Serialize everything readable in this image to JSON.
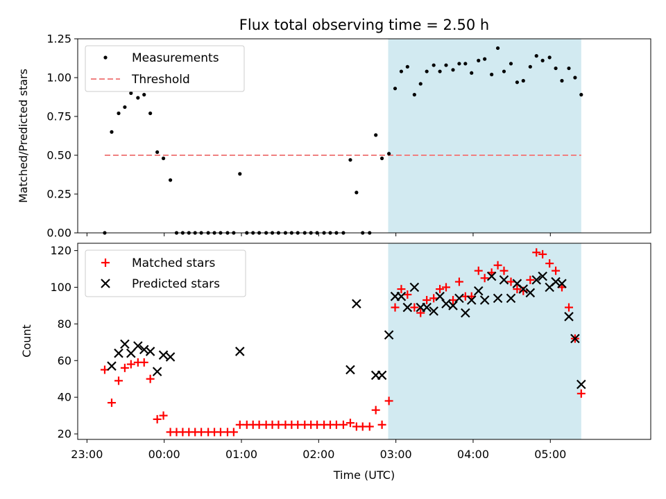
{
  "chart_data": {
    "title": "Flux total observing time = 2.50 h",
    "xlabel": "Time (UTC)",
    "x_unit": "hours",
    "xlim": [
      22.88,
      6.3
    ],
    "x_ticks": [
      {
        "value": 23.0,
        "label": "23:00"
      },
      {
        "value": 24.0,
        "label": "00:00"
      },
      {
        "value": 25.0,
        "label": "01:00"
      },
      {
        "value": 26.0,
        "label": "02:00"
      },
      {
        "value": 27.0,
        "label": "03:00"
      },
      {
        "value": 28.0,
        "label": "04:00"
      },
      {
        "value": 29.0,
        "label": "05:00"
      }
    ],
    "shaded_region": {
      "x_start": 26.9,
      "x_end": 29.4,
      "color": "#add8e6"
    },
    "panels": [
      {
        "type": "scatter",
        "ylabel": "Matched/Predicted stars",
        "ylim": [
          0,
          1.25
        ],
        "yticks": [
          "0.00",
          "0.25",
          "0.50",
          "0.75",
          "1.00",
          "1.25"
        ],
        "legend": "top-left",
        "threshold": {
          "name": "Threshold",
          "y": 0.5,
          "x_start": 23.23,
          "x_end": 29.4,
          "color": "#f08080"
        },
        "series": [
          {
            "name": "Measurements",
            "color": "#000000",
            "points": [
              [
                23.23,
                0.0
              ],
              [
                23.32,
                0.65
              ],
              [
                23.41,
                0.77
              ],
              [
                23.49,
                0.81
              ],
              [
                23.57,
                0.9
              ],
              [
                23.66,
                0.87
              ],
              [
                23.74,
                0.89
              ],
              [
                23.82,
                0.77
              ],
              [
                23.91,
                0.52
              ],
              [
                23.99,
                0.48
              ],
              [
                24.08,
                0.34
              ],
              [
                24.16,
                0.0
              ],
              [
                24.24,
                0.0
              ],
              [
                24.32,
                0.0
              ],
              [
                24.4,
                0.0
              ],
              [
                24.48,
                0.0
              ],
              [
                24.57,
                0.0
              ],
              [
                24.65,
                0.0
              ],
              [
                24.73,
                0.0
              ],
              [
                24.82,
                0.0
              ],
              [
                24.9,
                0.0
              ],
              [
                24.98,
                0.38
              ],
              [
                25.07,
                0.0
              ],
              [
                25.15,
                0.0
              ],
              [
                25.23,
                0.0
              ],
              [
                25.32,
                0.0
              ],
              [
                25.4,
                0.0
              ],
              [
                25.48,
                0.0
              ],
              [
                25.57,
                0.0
              ],
              [
                25.65,
                0.0
              ],
              [
                25.73,
                0.0
              ],
              [
                25.82,
                0.0
              ],
              [
                25.9,
                0.0
              ],
              [
                25.98,
                0.0
              ],
              [
                26.07,
                0.0
              ],
              [
                26.15,
                0.0
              ],
              [
                26.23,
                0.0
              ],
              [
                26.32,
                0.0
              ],
              [
                26.41,
                0.47
              ],
              [
                26.49,
                0.26
              ],
              [
                26.57,
                0.0
              ],
              [
                26.66,
                0.0
              ],
              [
                26.74,
                0.63
              ],
              [
                26.82,
                0.48
              ],
              [
                26.91,
                0.51
              ],
              [
                26.99,
                0.93
              ],
              [
                27.07,
                1.04
              ],
              [
                27.15,
                1.07
              ],
              [
                27.24,
                0.89
              ],
              [
                27.32,
                0.96
              ],
              [
                27.4,
                1.04
              ],
              [
                27.49,
                1.08
              ],
              [
                27.57,
                1.04
              ],
              [
                27.65,
                1.08
              ],
              [
                27.74,
                1.05
              ],
              [
                27.82,
                1.09
              ],
              [
                27.9,
                1.09
              ],
              [
                27.98,
                1.03
              ],
              [
                28.07,
                1.11
              ],
              [
                28.15,
                1.12
              ],
              [
                28.24,
                1.02
              ],
              [
                28.32,
                1.19
              ],
              [
                28.4,
                1.04
              ],
              [
                28.49,
                1.09
              ],
              [
                28.57,
                0.97
              ],
              [
                28.65,
                0.98
              ],
              [
                28.74,
                1.07
              ],
              [
                28.82,
                1.14
              ],
              [
                28.9,
                1.11
              ],
              [
                28.99,
                1.13
              ],
              [
                29.07,
                1.06
              ],
              [
                29.15,
                0.98
              ],
              [
                29.24,
                1.06
              ],
              [
                29.32,
                1.0
              ],
              [
                29.4,
                0.89
              ]
            ]
          }
        ]
      },
      {
        "type": "scatter",
        "ylabel": "Count",
        "ylim": [
          17,
          124
        ],
        "yticks": [
          "20",
          "40",
          "60",
          "80",
          "100",
          "120"
        ],
        "legend": "top-left",
        "series": [
          {
            "name": "Matched stars",
            "color": "#ff0000",
            "marker": "plus",
            "points": [
              [
                23.23,
                55
              ],
              [
                23.32,
                37
              ],
              [
                23.41,
                49
              ],
              [
                23.49,
                56
              ],
              [
                23.57,
                58
              ],
              [
                23.66,
                59
              ],
              [
                23.74,
                59
              ],
              [
                23.82,
                50
              ],
              [
                23.91,
                28
              ],
              [
                23.99,
                30
              ],
              [
                24.08,
                21
              ],
              [
                24.16,
                21
              ],
              [
                24.24,
                21
              ],
              [
                24.32,
                21
              ],
              [
                24.4,
                21
              ],
              [
                24.48,
                21
              ],
              [
                24.57,
                21
              ],
              [
                24.65,
                21
              ],
              [
                24.73,
                21
              ],
              [
                24.82,
                21
              ],
              [
                24.9,
                21
              ],
              [
                24.98,
                25
              ],
              [
                25.07,
                25
              ],
              [
                25.15,
                25
              ],
              [
                25.23,
                25
              ],
              [
                25.32,
                25
              ],
              [
                25.4,
                25
              ],
              [
                25.48,
                25
              ],
              [
                25.57,
                25
              ],
              [
                25.65,
                25
              ],
              [
                25.73,
                25
              ],
              [
                25.82,
                25
              ],
              [
                25.9,
                25
              ],
              [
                25.98,
                25
              ],
              [
                26.07,
                25
              ],
              [
                26.15,
                25
              ],
              [
                26.23,
                25
              ],
              [
                26.32,
                25
              ],
              [
                26.41,
                26
              ],
              [
                26.49,
                24
              ],
              [
                26.57,
                24
              ],
              [
                26.66,
                24
              ],
              [
                26.74,
                33
              ],
              [
                26.82,
                25
              ],
              [
                26.91,
                38
              ],
              [
                26.99,
                89
              ],
              [
                27.07,
                99
              ],
              [
                27.15,
                96
              ],
              [
                27.24,
                89
              ],
              [
                27.32,
                86
              ],
              [
                27.4,
                93
              ],
              [
                27.49,
                94
              ],
              [
                27.57,
                99
              ],
              [
                27.65,
                100
              ],
              [
                27.74,
                93
              ],
              [
                27.82,
                103
              ],
              [
                27.9,
                95
              ],
              [
                27.98,
                95
              ],
              [
                28.07,
                109
              ],
              [
                28.15,
                105
              ],
              [
                28.24,
                108
              ],
              [
                28.32,
                112
              ],
              [
                28.4,
                109
              ],
              [
                28.49,
                103
              ],
              [
                28.57,
                99
              ],
              [
                28.65,
                98
              ],
              [
                28.74,
                104
              ],
              [
                28.82,
                119
              ],
              [
                28.9,
                118
              ],
              [
                28.99,
                113
              ],
              [
                29.07,
                109
              ],
              [
                29.15,
                100
              ],
              [
                29.24,
                89
              ],
              [
                29.32,
                72
              ],
              [
                29.4,
                42
              ]
            ]
          },
          {
            "name": "Predicted stars",
            "color": "#000000",
            "marker": "x",
            "points": [
              [
                23.32,
                57
              ],
              [
                23.41,
                64
              ],
              [
                23.49,
                69
              ],
              [
                23.57,
                64
              ],
              [
                23.66,
                68
              ],
              [
                23.74,
                66
              ],
              [
                23.82,
                65
              ],
              [
                23.91,
                54
              ],
              [
                23.99,
                63
              ],
              [
                24.08,
                62
              ],
              [
                24.98,
                65
              ],
              [
                26.41,
                55
              ],
              [
                26.49,
                91
              ],
              [
                26.74,
                52
              ],
              [
                26.82,
                52
              ],
              [
                26.91,
                74
              ],
              [
                26.99,
                95
              ],
              [
                27.07,
                95
              ],
              [
                27.15,
                89
              ],
              [
                27.24,
                100
              ],
              [
                27.32,
                89
              ],
              [
                27.4,
                89
              ],
              [
                27.49,
                87
              ],
              [
                27.57,
                95
              ],
              [
                27.65,
                91
              ],
              [
                27.74,
                90
              ],
              [
                27.82,
                94
              ],
              [
                27.9,
                86
              ],
              [
                27.98,
                93
              ],
              [
                28.07,
                98
              ],
              [
                28.15,
                93
              ],
              [
                28.24,
                106
              ],
              [
                28.32,
                94
              ],
              [
                28.4,
                104
              ],
              [
                28.49,
                94
              ],
              [
                28.57,
                102
              ],
              [
                28.65,
                99
              ],
              [
                28.74,
                97
              ],
              [
                28.82,
                104
              ],
              [
                28.9,
                106
              ],
              [
                28.99,
                100
              ],
              [
                29.07,
                103
              ],
              [
                29.15,
                102
              ],
              [
                29.24,
                84
              ],
              [
                29.32,
                72
              ],
              [
                29.4,
                47
              ]
            ]
          }
        ]
      }
    ]
  }
}
